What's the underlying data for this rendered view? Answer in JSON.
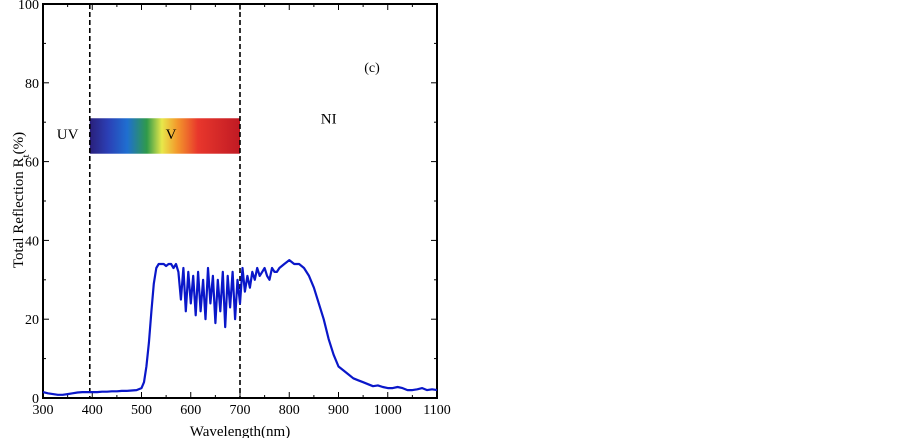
{
  "chart_data": {
    "type": "line",
    "xlabel": "Wavelength(nm)",
    "ylabel": "Total Reflection R",
    "ylabel_sub": "t",
    "ylabel_unit": "(%)",
    "xlim": [
      300,
      1100
    ],
    "ylim": [
      0,
      100
    ],
    "x_ticks": [
      300,
      400,
      500,
      600,
      700,
      800,
      900,
      1000,
      1100
    ],
    "y_ticks": [
      0,
      20,
      40,
      60,
      80,
      100
    ],
    "panel_label": "(c)",
    "dashed_lines_x": [
      395,
      700
    ],
    "regions": [
      {
        "label": "UV",
        "x": 350,
        "y": 67
      },
      {
        "label": "V",
        "x": 560,
        "y": 67
      },
      {
        "label": "NI",
        "x": 880,
        "y": 71
      }
    ],
    "spectrum_band": {
      "x_start": 395,
      "x_end": 700,
      "y_bottom": 62,
      "y_top": 71
    },
    "line_color": "#0a17c9",
    "series": [
      {
        "x": [
          300,
          310,
          320,
          330,
          340,
          350,
          360,
          370,
          380,
          390,
          400,
          410,
          420,
          430,
          440,
          450,
          460,
          470,
          480,
          490,
          500,
          505,
          510,
          515,
          520,
          525,
          530,
          535,
          540,
          545,
          550,
          555,
          560,
          565,
          570,
          575,
          580,
          585,
          590,
          595,
          600,
          605,
          610,
          615,
          620,
          625,
          630,
          635,
          640,
          645,
          650,
          655,
          660,
          665,
          670,
          675,
          680,
          685,
          690,
          695,
          700,
          705,
          710,
          715,
          720,
          725,
          730,
          735,
          740,
          745,
          750,
          755,
          760,
          765,
          770,
          775,
          780,
          790,
          800,
          810,
          820,
          830,
          840,
          850,
          860,
          870,
          880,
          890,
          900,
          910,
          920,
          930,
          940,
          950,
          960,
          970,
          980,
          990,
          1000,
          1010,
          1020,
          1030,
          1040,
          1050,
          1060,
          1070,
          1080,
          1090,
          1100
        ],
        "y": [
          1.5,
          1.2,
          1.0,
          0.8,
          0.8,
          1.0,
          1.2,
          1.4,
          1.5,
          1.5,
          1.5,
          1.5,
          1.6,
          1.6,
          1.7,
          1.7,
          1.8,
          1.8,
          1.9,
          2.0,
          2.5,
          4,
          8,
          14,
          22,
          29,
          33,
          34,
          34,
          34,
          33.5,
          34,
          34,
          33,
          34,
          32,
          25,
          33,
          22,
          32,
          24,
          31,
          21,
          32,
          22,
          30,
          20,
          33,
          24,
          31,
          19,
          30,
          22,
          32,
          18,
          31,
          23,
          32,
          20,
          30,
          24,
          33,
          27,
          31,
          28,
          32,
          30,
          33,
          31,
          32,
          33,
          31,
          30,
          33,
          32,
          32,
          33,
          34,
          35,
          34,
          34,
          33,
          31,
          28,
          24,
          20,
          15,
          11,
          8,
          7,
          6,
          5,
          4.5,
          4,
          3.5,
          3,
          3.2,
          2.8,
          2.5,
          2.5,
          2.8,
          2.5,
          2,
          2,
          2.2,
          2.5,
          2,
          2.2,
          2
        ]
      }
    ]
  }
}
